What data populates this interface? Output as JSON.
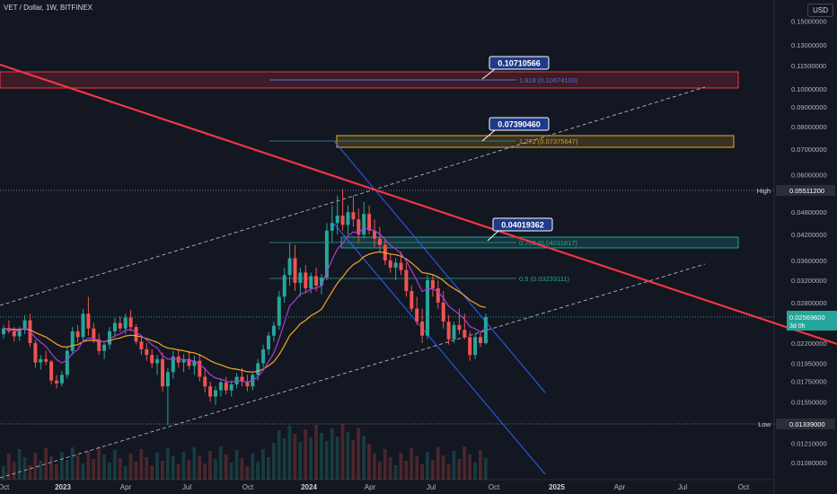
{
  "header": {
    "symbol": "VET / Dollar, 1W, BITFINEX",
    "currency": "USD"
  },
  "colors": {
    "background": "#131722",
    "up": "#26a69a",
    "down": "#ef5350",
    "ema_orange": "#f5a623",
    "ema_purple": "#b03ad6",
    "trendline": "#f23645",
    "channel_blue": "#2962ff",
    "dashed": "#b2b5be"
  },
  "chart_data": {
    "type": "candlestick",
    "y_scale": "log",
    "ylim": [
      0.00975,
      0.17
    ],
    "x_tick_labels": [
      "Oct",
      "2023",
      "Apr",
      "Jul",
      "Oct",
      "2024",
      "Apr",
      "Jul",
      "Oct",
      "2025",
      "Apr",
      "Jul",
      "Oct"
    ],
    "y_tick_labels": [
      "0.15000000",
      "0.13000000",
      "0.11500000",
      "0.10000000",
      "0.09000000",
      "0.08000000",
      "0.07000000",
      "0.06000000",
      "0.04800000",
      "0.04200000",
      "0.03600000",
      "0.03200000",
      "0.02800000",
      "0.02200000",
      "0.01950000",
      "0.01750000",
      "0.01550000",
      "0.01210000",
      "0.01080000"
    ],
    "price_markers": [
      {
        "label": "High",
        "value": "0.05511200"
      },
      {
        "label": "Low",
        "value": "0.01339000"
      }
    ],
    "last_price": {
      "value": "0.02569600",
      "countdown": "3d 0h"
    },
    "fib_levels": [
      {
        "label": "1.618 (0.10674103)",
        "color": "#5b6bd6"
      },
      {
        "label": "1.272 (0.07375647)",
        "color": "#c9a227"
      },
      {
        "label": "0.702 (0.04011817)",
        "color": "#26a69a"
      },
      {
        "label": "0.5 (0.03233111)",
        "color": "#26a69a"
      }
    ],
    "target_labels": [
      "0.10710566",
      "0.07390460",
      "0.04019362"
    ],
    "candles": [
      [
        0.0232,
        0.0245,
        0.0226,
        0.024
      ],
      [
        0.024,
        0.0252,
        0.0233,
        0.0236
      ],
      [
        0.0236,
        0.0242,
        0.0222,
        0.0229
      ],
      [
        0.0229,
        0.0243,
        0.0223,
        0.0238
      ],
      [
        0.0238,
        0.026,
        0.0232,
        0.0252
      ],
      [
        0.0252,
        0.0262,
        0.0215,
        0.022
      ],
      [
        0.022,
        0.0224,
        0.019,
        0.0196
      ],
      [
        0.0196,
        0.0205,
        0.0188,
        0.02
      ],
      [
        0.02,
        0.021,
        0.0193,
        0.0197
      ],
      [
        0.0197,
        0.0199,
        0.0172,
        0.0176
      ],
      [
        0.0176,
        0.0182,
        0.0168,
        0.0173
      ],
      [
        0.0173,
        0.0186,
        0.017,
        0.0182
      ],
      [
        0.0182,
        0.0215,
        0.0178,
        0.021
      ],
      [
        0.021,
        0.0242,
        0.0205,
        0.0236
      ],
      [
        0.0236,
        0.0245,
        0.022,
        0.0228
      ],
      [
        0.0228,
        0.027,
        0.0222,
        0.0262
      ],
      [
        0.0262,
        0.029,
        0.023,
        0.024
      ],
      [
        0.024,
        0.0248,
        0.022,
        0.0225
      ],
      [
        0.0225,
        0.0233,
        0.0205,
        0.021
      ],
      [
        0.021,
        0.0222,
        0.02,
        0.0218
      ],
      [
        0.0218,
        0.0242,
        0.0212,
        0.0236
      ],
      [
        0.0236,
        0.0256,
        0.0228,
        0.0248
      ],
      [
        0.0248,
        0.0258,
        0.0235,
        0.024
      ],
      [
        0.024,
        0.0262,
        0.0232,
        0.0256
      ],
      [
        0.0256,
        0.0268,
        0.0236,
        0.0242
      ],
      [
        0.0242,
        0.0246,
        0.0218,
        0.0222
      ],
      [
        0.0222,
        0.0228,
        0.0205,
        0.0212
      ],
      [
        0.0212,
        0.022,
        0.0198,
        0.0205
      ],
      [
        0.0205,
        0.0212,
        0.019,
        0.0195
      ],
      [
        0.0195,
        0.0205,
        0.0182,
        0.02
      ],
      [
        0.02,
        0.0208,
        0.0165,
        0.017
      ],
      [
        0.017,
        0.019,
        0.0135,
        0.0185
      ],
      [
        0.0185,
        0.021,
        0.0178,
        0.0203
      ],
      [
        0.0203,
        0.0212,
        0.019,
        0.0196
      ],
      [
        0.0196,
        0.0206,
        0.0185,
        0.02
      ],
      [
        0.02,
        0.021,
        0.0188,
        0.0192
      ],
      [
        0.0192,
        0.0204,
        0.0182,
        0.0198
      ],
      [
        0.0198,
        0.0206,
        0.0175,
        0.018
      ],
      [
        0.018,
        0.019,
        0.0164,
        0.017
      ],
      [
        0.017,
        0.0175,
        0.0155,
        0.016
      ],
      [
        0.016,
        0.017,
        0.0152,
        0.0166
      ],
      [
        0.0166,
        0.0178,
        0.016,
        0.0174
      ],
      [
        0.0174,
        0.018,
        0.0162,
        0.0166
      ],
      [
        0.0166,
        0.0176,
        0.016,
        0.0172
      ],
      [
        0.0172,
        0.0184,
        0.0168,
        0.018
      ],
      [
        0.018,
        0.019,
        0.017,
        0.0175
      ],
      [
        0.0175,
        0.0182,
        0.0165,
        0.017
      ],
      [
        0.017,
        0.0185,
        0.0166,
        0.0182
      ],
      [
        0.0182,
        0.02,
        0.0176,
        0.0195
      ],
      [
        0.0195,
        0.0218,
        0.019,
        0.0212
      ],
      [
        0.0212,
        0.0235,
        0.0205,
        0.023
      ],
      [
        0.023,
        0.025,
        0.0222,
        0.0244
      ],
      [
        0.0244,
        0.03,
        0.0238,
        0.029
      ],
      [
        0.029,
        0.0345,
        0.028,
        0.033
      ],
      [
        0.033,
        0.04,
        0.031,
        0.0365
      ],
      [
        0.0365,
        0.0395,
        0.03,
        0.0315
      ],
      [
        0.0315,
        0.0345,
        0.029,
        0.0335
      ],
      [
        0.0335,
        0.035,
        0.0296,
        0.0305
      ],
      [
        0.0305,
        0.0335,
        0.0296,
        0.0328
      ],
      [
        0.0328,
        0.0345,
        0.03,
        0.031
      ],
      [
        0.031,
        0.0332,
        0.0294,
        0.0325
      ],
      [
        0.0325,
        0.045,
        0.032,
        0.043
      ],
      [
        0.043,
        0.05,
        0.04,
        0.045
      ],
      [
        0.045,
        0.053,
        0.042,
        0.047
      ],
      [
        0.047,
        0.0551,
        0.043,
        0.0445
      ],
      [
        0.0445,
        0.05,
        0.042,
        0.048
      ],
      [
        0.048,
        0.053,
        0.044,
        0.046
      ],
      [
        0.046,
        0.049,
        0.04,
        0.042
      ],
      [
        0.042,
        0.051,
        0.041,
        0.0475
      ],
      [
        0.0475,
        0.05,
        0.042,
        0.043
      ],
      [
        0.043,
        0.046,
        0.039,
        0.041
      ],
      [
        0.041,
        0.044,
        0.038,
        0.0395
      ],
      [
        0.0395,
        0.041,
        0.035,
        0.036
      ],
      [
        0.036,
        0.0375,
        0.0335,
        0.0345
      ],
      [
        0.0345,
        0.0365,
        0.032,
        0.0355
      ],
      [
        0.0355,
        0.038,
        0.033,
        0.034
      ],
      [
        0.034,
        0.0355,
        0.029,
        0.03
      ],
      [
        0.03,
        0.031,
        0.0265,
        0.027
      ],
      [
        0.027,
        0.029,
        0.0245,
        0.025
      ],
      [
        0.025,
        0.027,
        0.022,
        0.023
      ],
      [
        0.023,
        0.033,
        0.0225,
        0.032
      ],
      [
        0.032,
        0.033,
        0.029,
        0.0305
      ],
      [
        0.0305,
        0.032,
        0.027,
        0.028
      ],
      [
        0.028,
        0.03,
        0.024,
        0.025
      ],
      [
        0.025,
        0.026,
        0.0218,
        0.0225
      ],
      [
        0.0225,
        0.025,
        0.022,
        0.0245
      ],
      [
        0.0245,
        0.027,
        0.0232,
        0.0238
      ],
      [
        0.0238,
        0.0262,
        0.0225,
        0.0228
      ],
      [
        0.0228,
        0.0236,
        0.0198,
        0.0205
      ],
      [
        0.0205,
        0.0232,
        0.02,
        0.0228
      ],
      [
        0.0228,
        0.0236,
        0.0215,
        0.022
      ],
      [
        0.022,
        0.0262,
        0.0218,
        0.0257
      ]
    ]
  }
}
